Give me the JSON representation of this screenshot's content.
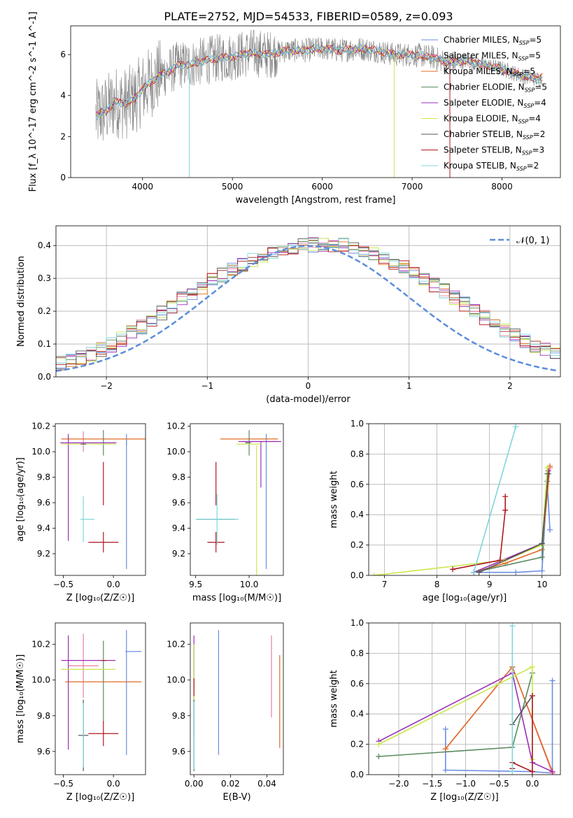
{
  "page_title": "PLATE=2752, MJD=54533, FIBERID=0589, z=0.093",
  "colors": {
    "chabrier_miles": "#6a8ee0",
    "salpeter_miles": "#e87da4",
    "kroupa_miles": "#e06e26",
    "chabrier_elodie": "#5b8a60",
    "salpeter_elodie": "#9a2fb6",
    "kroupa_elodie": "#c9e84c",
    "chabrier_stelib": "#555555",
    "salpeter_stelib": "#b0181e",
    "kroupa_stelib": "#7fd6dc",
    "spectrum": "#808080",
    "normal": "#5b8dd9"
  },
  "chart_data": [
    {
      "id": "spectrum",
      "type": "line",
      "title": "PLATE=2752, MJD=54533, FIBERID=0589, z=0.093",
      "xlabel": "wavelength [Angstrom, rest frame]",
      "ylabel": "Flux [f_λ 10^-17 erg cm^-2 s^-1 A^-1]",
      "xlim": [
        3200,
        8650
      ],
      "ylim": [
        0,
        7.4
      ],
      "xticks": [
        "4000",
        "5000",
        "6000",
        "7000",
        "8000"
      ],
      "yticks": [
        "0",
        "2",
        "4",
        "6"
      ],
      "legend_position": "right",
      "legend": [
        {
          "label": "Chabrier MILES, N",
          "sub": "SSP",
          "suffix": "=5",
          "color": "chabrier_miles"
        },
        {
          "label": "Salpeter MILES, N",
          "sub": "SSP",
          "suffix": "=5",
          "color": "salpeter_miles"
        },
        {
          "label": "Kroupa MILES, N",
          "sub": "SSP",
          "suffix": "=5",
          "color": "kroupa_miles"
        },
        {
          "label": "Chabrier ELODIE, N",
          "sub": "SSP",
          "suffix": "=5",
          "color": "chabrier_elodie"
        },
        {
          "label": "Salpeter ELODIE, N",
          "sub": "SSP",
          "suffix": "=4",
          "color": "salpeter_elodie"
        },
        {
          "label": "Kroupa ELODIE, N",
          "sub": "SSP",
          "suffix": "=4",
          "color": "kroupa_elodie"
        },
        {
          "label": "Chabrier STELIB, N",
          "sub": "SSP",
          "suffix": "=2",
          "color": "chabrier_stelib"
        },
        {
          "label": "Salpeter STELIB, N",
          "sub": "SSP",
          "suffix": "=3",
          "color": "salpeter_stelib"
        },
        {
          "label": "Kroupa STELIB, N",
          "sub": "SSP",
          "suffix": "=2",
          "color": "kroupa_stelib"
        }
      ],
      "model_continuum": [
        [
          3480,
          3.0
        ],
        [
          3600,
          3.3
        ],
        [
          3700,
          3.7
        ],
        [
          3800,
          3.6
        ],
        [
          3900,
          3.8
        ],
        [
          4000,
          4.3
        ],
        [
          4100,
          4.7
        ],
        [
          4200,
          5.0
        ],
        [
          4300,
          5.2
        ],
        [
          4400,
          5.5
        ],
        [
          4500,
          5.5
        ],
        [
          4600,
          5.6
        ],
        [
          4800,
          5.8
        ],
        [
          5000,
          5.9
        ],
        [
          5200,
          6.1
        ],
        [
          5400,
          6.0
        ],
        [
          5600,
          6.2
        ],
        [
          5800,
          6.2
        ],
        [
          6000,
          6.3
        ],
        [
          6200,
          6.2
        ],
        [
          6400,
          6.3
        ],
        [
          6600,
          6.2
        ],
        [
          6800,
          6.0
        ],
        [
          7000,
          6.0
        ],
        [
          7200,
          5.9
        ],
        [
          7400,
          5.6
        ],
        [
          7600,
          5.7
        ],
        [
          7800,
          5.5
        ],
        [
          8000,
          5.3
        ],
        [
          8200,
          5.0
        ],
        [
          8400,
          4.8
        ],
        [
          8450,
          4.9
        ]
      ]
    },
    {
      "id": "residuals",
      "type": "line",
      "xlabel": "(data-model)/error",
      "ylabel": "Normed distribution",
      "xlim": [
        -2.5,
        2.5
      ],
      "ylim": [
        0,
        0.46
      ],
      "xticks": [
        "−2",
        "−1",
        "0",
        "1",
        "2"
      ],
      "yticks": [
        "0.0",
        "0.1",
        "0.2",
        "0.3",
        "0.4"
      ],
      "grid": true,
      "legend_position": "top-right",
      "normal_label": "𝒩(0, 1)",
      "histogram_bin_width": 0.1,
      "histogram_mean": [
        0.028,
        0.033,
        0.04,
        0.049,
        0.058,
        0.07,
        0.083,
        0.098,
        0.115,
        0.133,
        0.152,
        0.172,
        0.195,
        0.215,
        0.236,
        0.256,
        0.275,
        0.294,
        0.311,
        0.327,
        0.342,
        0.355,
        0.366,
        0.377,
        0.386,
        0.392,
        0.398,
        0.402,
        0.404,
        0.403,
        0.4,
        0.394,
        0.386,
        0.376,
        0.364,
        0.35,
        0.335,
        0.318,
        0.3,
        0.281,
        0.261,
        0.241,
        0.221,
        0.2,
        0.18,
        0.161,
        0.143,
        0.126,
        0.11,
        0.096,
        0.083,
        0.071,
        0.061,
        0.052,
        0.045
      ]
    },
    {
      "id": "age_vs_z",
      "type": "scatter",
      "xlabel": "Z [log₁₀(Z/Z☉)]",
      "ylabel": "age [log₁₀(age/yr)]",
      "xlim": [
        -0.58,
        0.32
      ],
      "ylim": [
        9.03,
        10.22
      ],
      "xticks": [
        "−0.5",
        "0.0"
      ],
      "yticks": [
        "9.2",
        "9.4",
        "9.6",
        "9.8",
        "10.0",
        "10.2"
      ],
      "points": [
        {
          "model": "chabrier_miles",
          "x": 0.13,
          "y": 9.61,
          "ex": 0.0,
          "ey": 0.53
        },
        {
          "model": "chabrier_miles",
          "x": 0.13,
          "y": 10.07,
          "ex": 0.0,
          "ey": 0.02
        },
        {
          "model": "salpeter_miles",
          "x": -0.3,
          "y": 10.08,
          "ex": 0.0,
          "ey": 0.08
        },
        {
          "model": "kroupa_miles",
          "x": -0.1,
          "y": 10.1,
          "ex": 0.42,
          "ey": 0.0
        },
        {
          "model": "chabrier_elodie",
          "x": -0.1,
          "y": 10.07,
          "ex": 0.0,
          "ey": 0.1
        },
        {
          "model": "salpeter_elodie",
          "x": -0.45,
          "y": 9.72,
          "ex": 0.0,
          "ey": 0.42
        },
        {
          "model": "salpeter_elodie",
          "x": -0.25,
          "y": 10.07,
          "ex": 0.28,
          "ey": 0.0
        },
        {
          "model": "kroupa_elodie",
          "x": -0.25,
          "y": 10.06,
          "ex": 0.27,
          "ey": 0.0
        },
        {
          "model": "chabrier_stelib",
          "x": -0.3,
          "y": 10.06,
          "ex": 0.0,
          "ey": 0.0
        },
        {
          "model": "salpeter_stelib",
          "x": -0.1,
          "y": 9.29,
          "ex": 0.15,
          "ey": 0.08
        },
        {
          "model": "salpeter_stelib",
          "x": -0.1,
          "y": 9.75,
          "ex": 0.0,
          "ey": 0.17
        },
        {
          "model": "kroupa_stelib",
          "x": -0.3,
          "y": 9.47,
          "ex": 0.0,
          "ey": 0.18
        },
        {
          "model": "kroupa_stelib",
          "x": -0.26,
          "y": 9.47,
          "ex": 0.07,
          "ey": 0.0
        }
      ]
    },
    {
      "id": "age_vs_mass",
      "type": "scatter",
      "xlabel": "mass [log₁₀(M/M☉)]",
      "ylabel": "",
      "xlim": [
        9.45,
        10.32
      ],
      "ylim": [
        9.03,
        10.22
      ],
      "xticks": [
        "9.5",
        "10.0"
      ],
      "yticks": [
        "9.2",
        "9.4",
        "9.6",
        "9.8",
        "10.0",
        "10.2"
      ],
      "points": [
        {
          "model": "chabrier_miles",
          "x": 10.16,
          "y": 9.61,
          "ex": 0.0,
          "ey": 0.53
        },
        {
          "model": "salpeter_miles",
          "x": 10.1,
          "y": 10.08,
          "ex": 0.16,
          "ey": 0.0
        },
        {
          "model": "kroupa_miles",
          "x": 10.0,
          "y": 10.1,
          "ex": 0.27,
          "ey": 0.0
        },
        {
          "model": "chabrier_elodie",
          "x": 10.0,
          "y": 10.07,
          "ex": 0.0,
          "ey": 0.1
        },
        {
          "model": "salpeter_elodie",
          "x": 10.1,
          "y": 10.08,
          "ex": 0.2,
          "ey": 0.0
        },
        {
          "model": "salpeter_elodie",
          "x": 10.11,
          "y": 9.9,
          "ex": 0.0,
          "ey": 0.18
        },
        {
          "model": "kroupa_elodie",
          "x": 10.07,
          "y": 9.53,
          "ex": 0.0,
          "ey": 0.52
        },
        {
          "model": "kroupa_elodie",
          "x": 10.0,
          "y": 10.06,
          "ex": 0.12,
          "ey": 0.0
        },
        {
          "model": "chabrier_stelib",
          "x": 9.69,
          "y": 9.47,
          "ex": 0.18,
          "ey": 0.0
        },
        {
          "model": "chabrier_stelib",
          "x": 9.99,
          "y": 10.07,
          "ex": 0.0,
          "ey": 0.0
        },
        {
          "model": "salpeter_stelib",
          "x": 9.69,
          "y": 9.29,
          "ex": 0.08,
          "ey": 0.08
        },
        {
          "model": "salpeter_stelib",
          "x": 9.69,
          "y": 9.75,
          "ex": 0.0,
          "ey": 0.17
        },
        {
          "model": "kroupa_stelib",
          "x": 9.7,
          "y": 9.47,
          "ex": 0.2,
          "ey": 0.2
        }
      ]
    },
    {
      "id": "weight_vs_age",
      "type": "line",
      "xlabel": "age [log₁₀(age/yr)]",
      "ylabel": "mass weight",
      "xlim": [
        6.7,
        10.35
      ],
      "ylim": [
        0,
        1.0
      ],
      "xticks": [
        "7",
        "8",
        "9",
        "10"
      ],
      "yticks": [
        "0.0",
        "0.2",
        "0.4",
        "0.6",
        "0.8",
        "1.0"
      ],
      "grid": true,
      "series": [
        {
          "model": "chabrier_miles",
          "x": [
            8.7,
            9.5,
            10.0,
            10.1,
            10.15
          ],
          "y": [
            0.02,
            0.02,
            0.03,
            0.62,
            0.3
          ]
        },
        {
          "model": "salpeter_miles",
          "x": [
            8.7,
            9.3,
            10.0,
            10.15
          ],
          "y": [
            0.02,
            0.08,
            0.17,
            0.71
          ]
        },
        {
          "model": "kroupa_miles",
          "x": [
            8.7,
            9.3,
            10.0,
            10.15
          ],
          "y": [
            0.02,
            0.08,
            0.17,
            0.72
          ]
        },
        {
          "model": "chabrier_elodie",
          "x": [
            8.7,
            10.0,
            10.1
          ],
          "y": [
            0.02,
            0.12,
            0.67
          ]
        },
        {
          "model": "salpeter_elodie",
          "x": [
            8.7,
            10.0,
            10.12
          ],
          "y": [
            0.02,
            0.21,
            0.69
          ]
        },
        {
          "model": "kroupa_elodie",
          "x": [
            6.8,
            9.3,
            10.0,
            10.1
          ],
          "y": [
            0.0,
            0.1,
            0.2,
            0.71
          ]
        },
        {
          "model": "chabrier_stelib",
          "x": [
            8.8,
            10.0,
            10.12
          ],
          "y": [
            0.02,
            0.21,
            0.67
          ]
        },
        {
          "model": "salpeter_stelib",
          "x": [
            8.3,
            9.2,
            9.3,
            9.3
          ],
          "y": [
            0.04,
            0.1,
            0.43,
            0.52
          ]
        },
        {
          "model": "kroupa_stelib",
          "x": [
            8.7,
            9.5
          ],
          "y": [
            0.02,
            0.98
          ]
        }
      ]
    },
    {
      "id": "mass_vs_z",
      "type": "scatter",
      "xlabel": "Z [log₁₀(Z/Z☉)]",
      "ylabel": "mass [log₁₀(M/M☉)]",
      "xlim": [
        -0.58,
        0.32
      ],
      "ylim": [
        9.47,
        10.32
      ],
      "xticks": [
        "−0.5",
        "0.0"
      ],
      "yticks": [
        "9.6",
        "9.8",
        "10.0",
        "10.2"
      ],
      "points": [
        {
          "model": "chabrier_miles",
          "x": 0.13,
          "y": 9.93,
          "ex": 0.0,
          "ey": 0.35
        },
        {
          "model": "chabrier_miles",
          "x": 0.2,
          "y": 10.16,
          "ex": 0.08,
          "ey": 0.0
        },
        {
          "model": "salpeter_miles",
          "x": -0.3,
          "y": 10.08,
          "ex": 0.15,
          "ey": 0.18
        },
        {
          "model": "kroupa_miles",
          "x": -0.1,
          "y": 9.99,
          "ex": 0.38,
          "ey": 0.0
        },
        {
          "model": "chabrier_elodie",
          "x": -0.1,
          "y": 9.99,
          "ex": 0.0,
          "ey": 0.23
        },
        {
          "model": "salpeter_elodie",
          "x": -0.45,
          "y": 9.93,
          "ex": 0.0,
          "ey": 0.32
        },
        {
          "model": "salpeter_elodie",
          "x": -0.25,
          "y": 10.11,
          "ex": 0.27,
          "ey": 0.0
        },
        {
          "model": "kroupa_elodie",
          "x": -0.25,
          "y": 10.06,
          "ex": 0.27,
          "ey": 0.0
        },
        {
          "model": "chabrier_stelib",
          "x": -0.3,
          "y": 9.69,
          "ex": 0.05,
          "ey": 0.2
        },
        {
          "model": "salpeter_stelib",
          "x": -0.1,
          "y": 9.7,
          "ex": 0.15,
          "ey": 0.07
        },
        {
          "model": "salpeter_stelib",
          "x": -0.1,
          "y": 10.11,
          "ex": 0.0,
          "ey": 0.0
        },
        {
          "model": "kroupa_stelib",
          "x": -0.3,
          "y": 9.69,
          "ex": 0.0,
          "ey": 0.18
        }
      ]
    },
    {
      "id": "mass_vs_ebv",
      "type": "scatter",
      "xlabel": "E(B-V)",
      "ylabel": "",
      "xlim": [
        -0.002,
        0.049
      ],
      "ylim": [
        9.47,
        10.32
      ],
      "xticks": [
        "0.00",
        "0.02",
        "0.04"
      ],
      "yticks": [
        "9.6",
        "9.8",
        "10.0",
        "10.2"
      ],
      "points": [
        {
          "model": "chabrier_miles",
          "x": 0.0135,
          "y": 9.93,
          "ex": 0.0,
          "ey": 0.35
        },
        {
          "model": "salpeter_miles",
          "x": 0.0425,
          "y": 10.02,
          "ex": 0.0,
          "ey": 0.23
        },
        {
          "model": "kroupa_miles",
          "x": 0.047,
          "y": 9.88,
          "ex": 0.0,
          "ey": 0.26
        },
        {
          "model": "chabrier_elodie",
          "x": 0.0,
          "y": 9.94,
          "ex": 0.0,
          "ey": 0.25
        },
        {
          "model": "salpeter_elodie",
          "x": 0.0,
          "y": 10.09,
          "ex": 0.0,
          "ey": 0.16
        },
        {
          "model": "kroupa_elodie",
          "x": 0.0,
          "y": 10.02,
          "ex": 0.0,
          "ey": 0.18
        },
        {
          "model": "chabrier_stelib",
          "x": 0.0,
          "y": 9.69,
          "ex": 0.0,
          "ey": 0.2
        },
        {
          "model": "salpeter_stelib",
          "x": 0.0,
          "y": 9.96,
          "ex": 0.0,
          "ey": 0.05
        },
        {
          "model": "kroupa_stelib",
          "x": 0.0,
          "y": 9.69,
          "ex": 0.0,
          "ey": 0.19
        }
      ]
    },
    {
      "id": "weight_vs_z",
      "type": "line",
      "xlabel": "Z [log₁₀(Z/Z☉)]",
      "ylabel": "mass weight",
      "xlim": [
        -2.45,
        0.42
      ],
      "ylim": [
        0,
        1.0
      ],
      "xticks": [
        "−2.0",
        "−1.5",
        "−1.0",
        "−0.5",
        "0.0"
      ],
      "yticks": [
        "0.0",
        "0.2",
        "0.4",
        "0.6",
        "0.8",
        "1.0"
      ],
      "grid": true,
      "series": [
        {
          "model": "chabrier_miles",
          "x": [
            -1.3,
            -1.3,
            0.0,
            0.3,
            0.3
          ],
          "y": [
            0.3,
            0.03,
            0.02,
            0.01,
            0.62
          ]
        },
        {
          "model": "salpeter_miles",
          "x": [
            -1.3,
            -0.3,
            0.3
          ],
          "y": [
            0.17,
            0.71,
            0.01
          ]
        },
        {
          "model": "kroupa_miles",
          "x": [
            -1.3,
            -0.3,
            0.3
          ],
          "y": [
            0.17,
            0.71,
            0.02
          ]
        },
        {
          "model": "chabrier_elodie",
          "x": [
            -2.3,
            -0.3,
            0.0
          ],
          "y": [
            0.12,
            0.18,
            0.67
          ]
        },
        {
          "model": "salpeter_elodie",
          "x": [
            -2.3,
            -0.3,
            0.0,
            0.3
          ],
          "y": [
            0.22,
            0.67,
            0.08,
            0.02
          ]
        },
        {
          "model": "kroupa_elodie",
          "x": [
            -2.3,
            0.0,
            0.0
          ],
          "y": [
            0.2,
            0.71,
            0.1
          ]
        },
        {
          "model": "chabrier_stelib",
          "x": [
            -0.3,
            0.0
          ],
          "y": [
            0.33,
            0.52
          ]
        },
        {
          "model": "salpeter_stelib",
          "x": [
            -0.3,
            -0.3,
            0.0,
            0.0
          ],
          "y": [
            0.04,
            0.08,
            0.02,
            0.52
          ]
        },
        {
          "model": "kroupa_stelib",
          "x": [
            -0.3,
            -0.3
          ],
          "y": [
            0.02,
            0.98
          ]
        }
      ]
    }
  ]
}
